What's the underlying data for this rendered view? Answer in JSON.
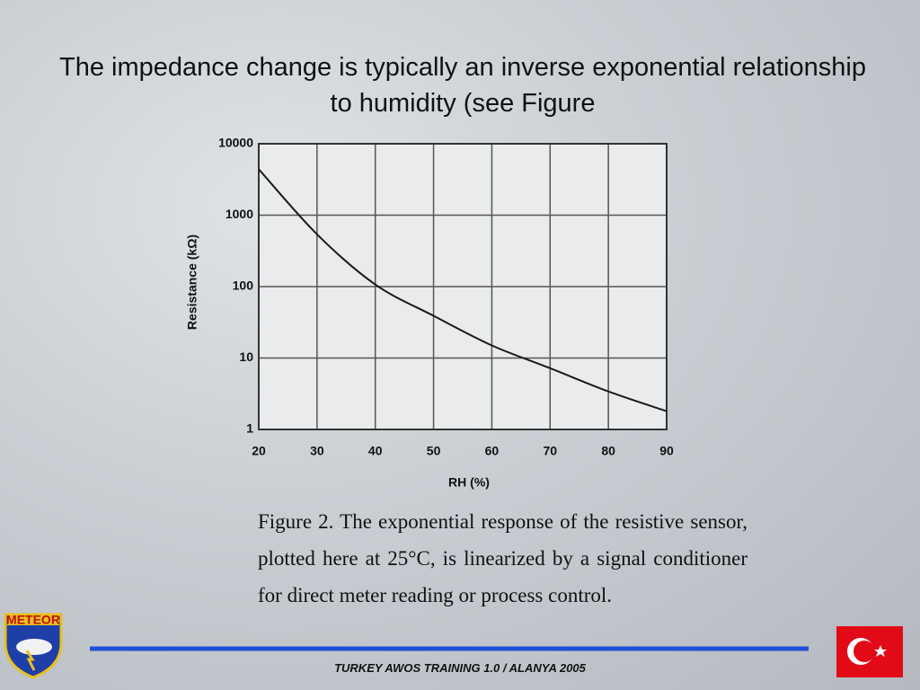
{
  "title": "The impedance change is typically an inverse exponential relationship to humidity (see Figure",
  "caption": "Figure 2. The exponential response of the resistive sensor, plotted here at 25°C, is linearized by a signal conditioner for direct meter reading or process control.",
  "footer": "TURKEY AWOS TRAINING 1.0 / ALANYA 2005",
  "logo_text": "METEOR",
  "chart_data": {
    "type": "line",
    "x_label": "RH (%)",
    "y_label": "Resistance (kΩ)",
    "x": [
      20,
      30,
      40,
      50,
      60,
      70,
      80,
      90
    ],
    "values": [
      4400,
      540,
      107,
      39,
      15,
      7.2,
      3.4,
      1.8
    ],
    "color": "#1a1a1a",
    "xlim": [
      20,
      90
    ],
    "xticks": [
      20,
      30,
      40,
      50,
      60,
      70,
      80,
      90
    ],
    "ylim": [
      1,
      10000
    ],
    "yticks": [
      1,
      10,
      100,
      1000,
      10000
    ],
    "log_y": true,
    "grid": true
  }
}
